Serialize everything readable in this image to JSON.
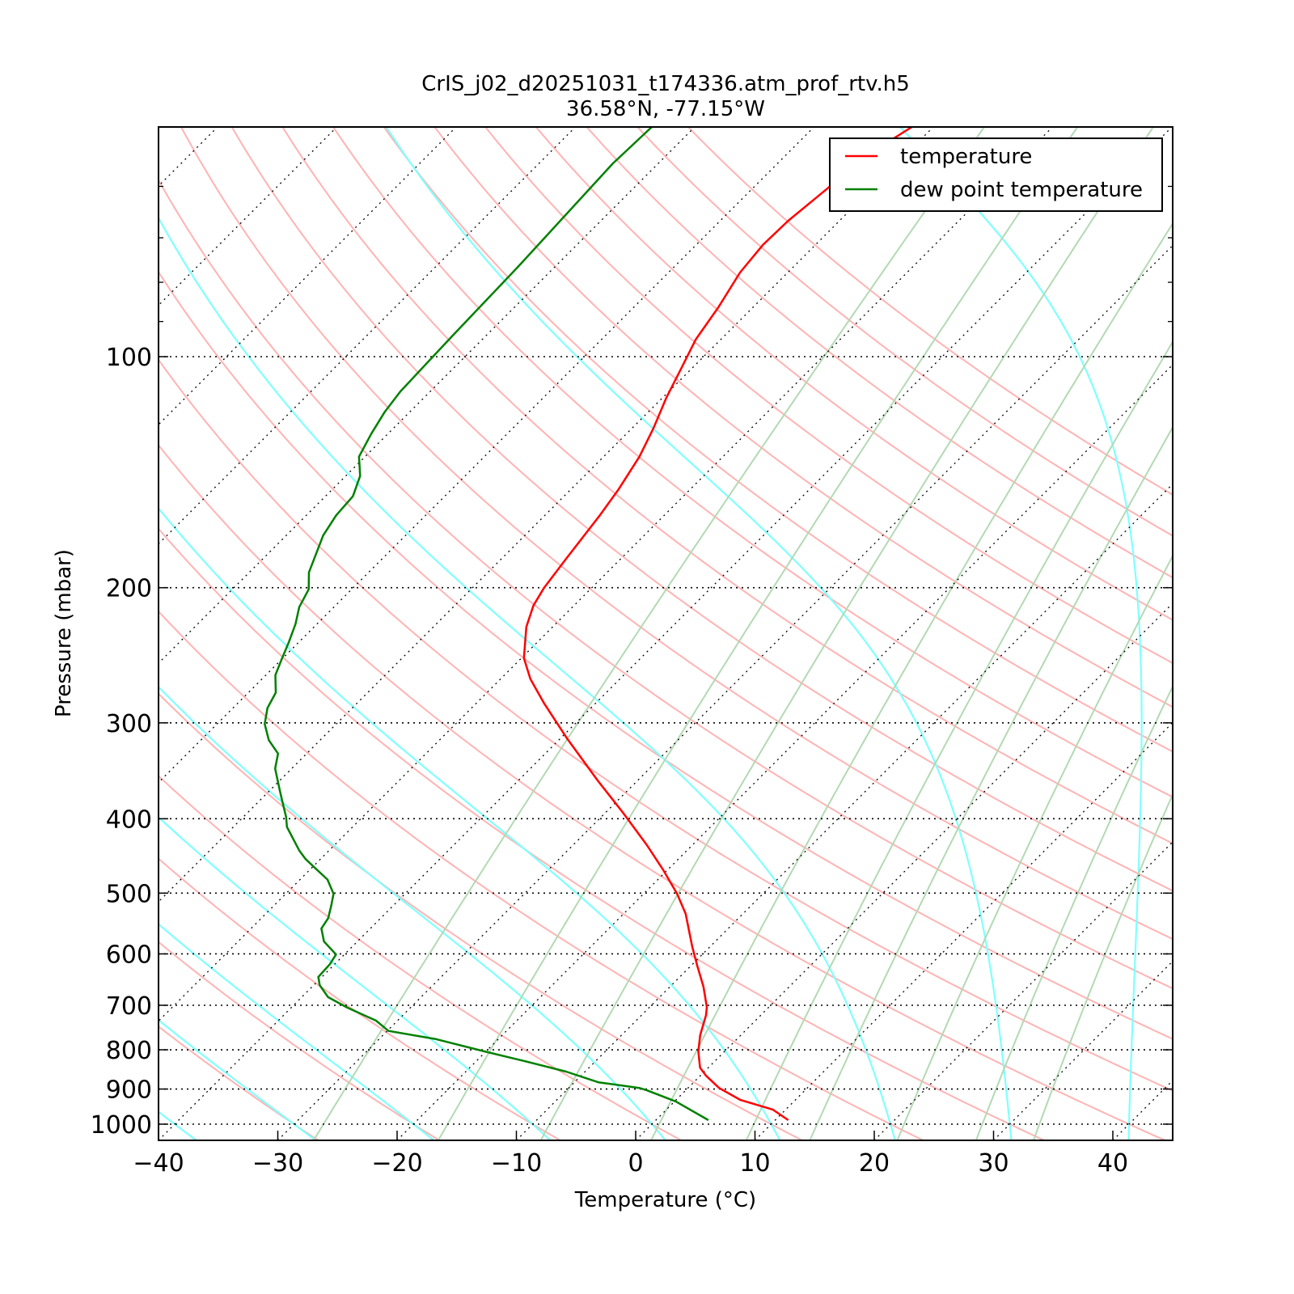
{
  "chart_data": {
    "type": "line",
    "subtype": "skew-t log-p",
    "title": [
      "CrIS_j02_d20251031_t174336.atm_prof_rtv.h5",
      "36.58°N, -77.15°W"
    ],
    "xlabel": "Temperature (°C)",
    "ylabel": "Pressure (mbar)",
    "xlim": [
      -40,
      45
    ],
    "ylim": [
      1050,
      50
    ],
    "skew_degrees": 45,
    "xticks": [
      -40,
      -30,
      -20,
      -10,
      0,
      10,
      20,
      30,
      40
    ],
    "xtick_labels": [
      "−40",
      "−30",
      "−20",
      "−10",
      "0",
      "10",
      "20",
      "30",
      "40"
    ],
    "yticks": [
      100,
      200,
      300,
      400,
      500,
      600,
      700,
      800,
      900,
      1000
    ],
    "ytick_labels": [
      "100",
      "200",
      "300",
      "400",
      "500",
      "600",
      "700",
      "800",
      "900",
      "1000"
    ],
    "minor_yticks": [
      60,
      70,
      80,
      90
    ],
    "grid": true,
    "legend": {
      "placement": "top-right",
      "entries": [
        "temperature",
        "dew point temperature"
      ]
    },
    "series": [
      {
        "name": "temperature",
        "color": "#ff0000",
        "pressure": [
          988,
          957,
          930,
          897,
          865,
          844,
          804,
          766,
          721,
          704,
          662,
          623,
          587,
          532,
          501,
          466,
          433,
          393,
          357,
          314,
          283,
          263,
          247,
          225,
          211,
          200,
          183,
          161,
          149,
          135,
          124,
          113,
          103.5,
          95,
          86.3,
          77.7,
          71.5,
          66.5,
          60.2,
          55.7,
          50.2
        ],
        "temperature": [
          11.1,
          8.9,
          5.4,
          2.6,
          0.5,
          -0.7,
          -2.2,
          -3.4,
          -4.6,
          -5.2,
          -7.2,
          -9.4,
          -11.5,
          -14.8,
          -17.2,
          -20.4,
          -23.8,
          -28.5,
          -33.3,
          -39.5,
          -44.3,
          -47.5,
          -49.8,
          -52.2,
          -53.4,
          -54.0,
          -54.6,
          -55.4,
          -56.0,
          -57.0,
          -58.2,
          -59.7,
          -60.9,
          -62.1,
          -62.9,
          -64.0,
          -64.4,
          -64.3,
          -63.7,
          -63.5,
          -61.8
        ]
      },
      {
        "name": "dew point temperature",
        "color": "#008000",
        "pressure": [
          988,
          934,
          903,
          897,
          882,
          854,
          828,
          804,
          775,
          756,
          733,
          705,
          683,
          659,
          643,
          619,
          601,
          578,
          556,
          539,
          519,
          501,
          480,
          463,
          451,
          440,
          410,
          398,
          379,
          366,
          344,
          329,
          316,
          301,
          287,
          274,
          260,
          248,
          236,
          223,
          212,
          201,
          191,
          171,
          161,
          152,
          143,
          135,
          126,
          118,
          111,
          94,
          76,
          56,
          50.2
        ],
        "temperature": [
          4.4,
          0.1,
          -3.3,
          -4.1,
          -8.0,
          -11.6,
          -15.9,
          -20.1,
          -25.2,
          -29.9,
          -31.8,
          -35.3,
          -37.8,
          -39.5,
          -40.3,
          -40.4,
          -40.7,
          -42.8,
          -44.1,
          -44.4,
          -45.2,
          -46.0,
          -47.7,
          -49.8,
          -51.3,
          -52.5,
          -55.5,
          -56.4,
          -58.1,
          -59.3,
          -61.4,
          -62.4,
          -64.3,
          -66.0,
          -67.1,
          -67.7,
          -69.2,
          -70.0,
          -70.8,
          -71.8,
          -72.9,
          -73.6,
          -75.0,
          -76.9,
          -77.5,
          -77.7,
          -78.8,
          -80.5,
          -81.4,
          -82.1,
          -82.5,
          -82.8,
          -83.1,
          -83.8,
          -83.6
        ]
      }
    ],
    "background": {
      "dry_adiabat_theta_C": [
        -30,
        -20,
        -10,
        0,
        10,
        20,
        30,
        40,
        50,
        60,
        70,
        80,
        90,
        100,
        110,
        120,
        130,
        140,
        150,
        160,
        170,
        180
      ],
      "moist_adiabat_T1000_C": [
        -40,
        -30,
        -20,
        -10,
        0,
        10,
        20,
        30,
        40,
        50
      ],
      "mixing_ratio_g_kg": [
        0.4,
        1,
        2,
        4,
        7,
        10,
        16,
        24,
        32
      ],
      "dry_color": "#ffb3b3",
      "moist_color": "#80ffff",
      "mixing_color": "#b3d9b3"
    }
  }
}
